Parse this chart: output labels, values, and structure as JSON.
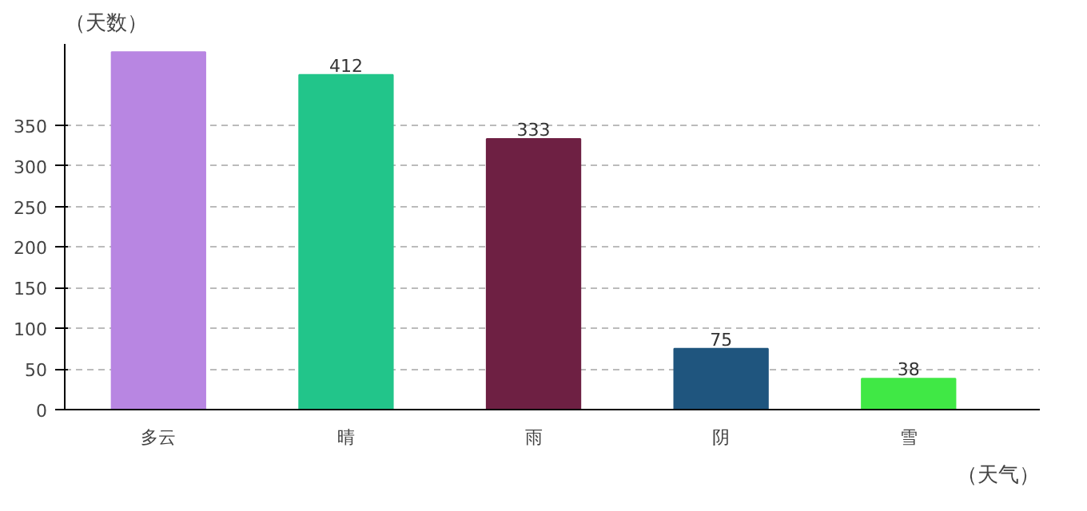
{
  "chart_data": {
    "type": "bar",
    "xlabel": "（天气）",
    "ylabel": "（天数）",
    "categories": [
      "多云",
      "晴",
      "雨",
      "阴",
      "雪"
    ],
    "values": [
      440,
      412,
      333,
      75,
      38
    ],
    "colors": [
      "#b886e2",
      "#22c58a",
      "#6e2043",
      "#1f557e",
      "#40e845"
    ],
    "value_labels": [
      null,
      "412",
      "333",
      "75",
      "38"
    ],
    "ylim": [
      0,
      450
    ],
    "yticks": [
      0,
      50,
      100,
      150,
      200,
      250,
      300,
      350
    ],
    "grid": "y"
  }
}
